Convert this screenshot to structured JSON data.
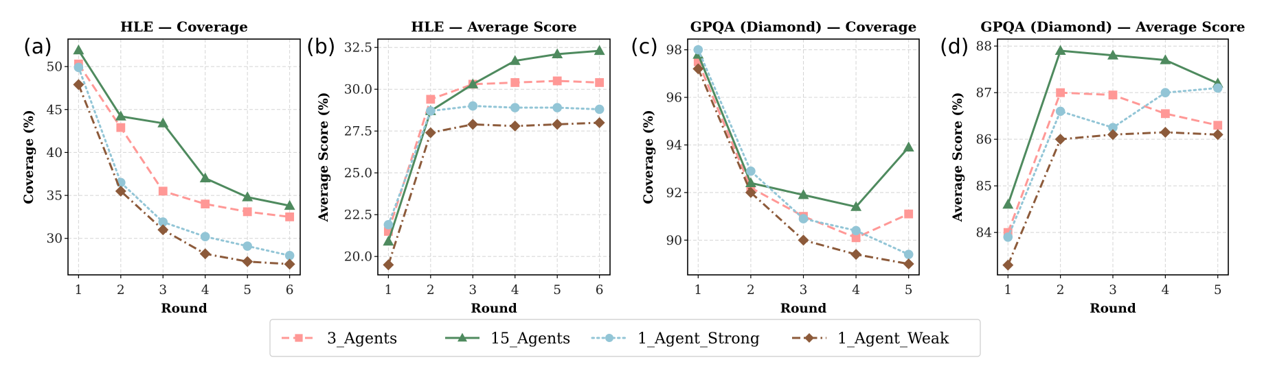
{
  "figure": {
    "legend": {
      "placement": "bottom-center",
      "entries": [
        {
          "name": "3_Agents",
          "color": "#FF9896",
          "marker": "square",
          "linestyle": "dashed"
        },
        {
          "name": "15_Agents",
          "color": "#4E8A5E",
          "marker": "triangle",
          "linestyle": "solid"
        },
        {
          "name": "1_Agent_Strong",
          "color": "#92C5D6",
          "marker": "circle",
          "linestyle": "dotted"
        },
        {
          "name": "1_Agent_Weak",
          "color": "#8C5A3A",
          "marker": "diamond",
          "linestyle": "dashdot"
        }
      ]
    }
  },
  "chart_data": [
    {
      "type": "line",
      "panel_label": "(a)",
      "title": "HLE — Coverage",
      "xlabel": "Round",
      "ylabel": "Coverage (%)",
      "x": [
        1,
        2,
        3,
        4,
        5,
        6
      ],
      "xticks": [
        "1",
        "2",
        "3",
        "4",
        "5",
        "6"
      ],
      "xlim": [
        0.75,
        6.25
      ],
      "ylim": [
        25.75,
        53.2
      ],
      "yticks": [
        30,
        35,
        40,
        45,
        50
      ],
      "ytick_labels": [
        "30",
        "35",
        "40",
        "45",
        "50"
      ],
      "grid": true,
      "series": [
        {
          "name": "3_Agents",
          "values": [
            50.3,
            42.9,
            35.5,
            34.0,
            33.1,
            32.5
          ]
        },
        {
          "name": "15_Agents",
          "values": [
            51.9,
            44.2,
            43.4,
            37.0,
            34.8,
            33.8
          ]
        },
        {
          "name": "1_Agent_Strong",
          "values": [
            49.9,
            36.5,
            31.9,
            30.2,
            29.1,
            28.0
          ]
        },
        {
          "name": "1_Agent_Weak",
          "values": [
            47.9,
            35.5,
            31.0,
            28.2,
            27.3,
            27.0
          ]
        }
      ]
    },
    {
      "type": "line",
      "panel_label": "(b)",
      "title": "HLE — Average Score",
      "xlabel": "Round",
      "ylabel": "Average Score (%)",
      "x": [
        1,
        2,
        3,
        4,
        5,
        6
      ],
      "xticks": [
        "1",
        "2",
        "3",
        "4",
        "5",
        "6"
      ],
      "xlim": [
        0.75,
        6.25
      ],
      "ylim": [
        18.9,
        33.0
      ],
      "yticks": [
        20.0,
        22.5,
        25.0,
        27.5,
        30.0,
        32.5
      ],
      "ytick_labels": [
        "20.0",
        "22.5",
        "25.0",
        "27.5",
        "30.0",
        "32.5"
      ],
      "grid": true,
      "series": [
        {
          "name": "3_Agents",
          "values": [
            21.5,
            29.4,
            30.3,
            30.4,
            30.5,
            30.4
          ]
        },
        {
          "name": "15_Agents",
          "values": [
            20.9,
            28.7,
            30.3,
            31.7,
            32.1,
            32.3
          ]
        },
        {
          "name": "1_Agent_Strong",
          "values": [
            21.9,
            28.7,
            29.0,
            28.9,
            28.9,
            28.8
          ]
        },
        {
          "name": "1_Agent_Weak",
          "values": [
            19.5,
            27.4,
            27.9,
            27.8,
            27.9,
            28.0
          ]
        }
      ]
    },
    {
      "type": "line",
      "panel_label": "(c)",
      "title": "GPQA (Diamond) — Coverage",
      "xlabel": "Round",
      "ylabel": "Coverage (%)",
      "x": [
        1,
        2,
        3,
        4,
        5
      ],
      "xticks": [
        "1",
        "2",
        "3",
        "4",
        "5"
      ],
      "xlim": [
        0.8,
        5.2
      ],
      "ylim": [
        88.54,
        98.45
      ],
      "yticks": [
        90,
        92,
        94,
        96,
        98
      ],
      "ytick_labels": [
        "90",
        "92",
        "94",
        "96",
        "98"
      ],
      "grid": true,
      "series": [
        {
          "name": "3_Agents",
          "values": [
            97.5,
            92.2,
            91.0,
            90.1,
            91.1
          ]
        },
        {
          "name": "15_Agents",
          "values": [
            97.8,
            92.4,
            91.9,
            91.4,
            93.9
          ]
        },
        {
          "name": "1_Agent_Strong",
          "values": [
            98.0,
            92.9,
            90.9,
            90.4,
            89.4
          ]
        },
        {
          "name": "1_Agent_Weak",
          "values": [
            97.2,
            92.0,
            90.0,
            89.4,
            89.0
          ]
        }
      ]
    },
    {
      "type": "line",
      "panel_label": "(d)",
      "title": "GPQA (Diamond) — Average Score",
      "xlabel": "Round",
      "ylabel": "Average Score (%)",
      "x": [
        1,
        2,
        3,
        4,
        5
      ],
      "xticks": [
        "1",
        "2",
        "3",
        "4",
        "5"
      ],
      "xlim": [
        0.8,
        5.2
      ],
      "ylim": [
        83.09,
        88.15
      ],
      "yticks": [
        84,
        85,
        86,
        87,
        88
      ],
      "ytick_labels": [
        "84",
        "85",
        "86",
        "87",
        "88"
      ],
      "grid": true,
      "series": [
        {
          "name": "3_Agents",
          "values": [
            84.0,
            87.0,
            86.95,
            86.55,
            86.3
          ]
        },
        {
          "name": "15_Agents",
          "values": [
            84.6,
            87.9,
            87.8,
            87.7,
            87.2
          ]
        },
        {
          "name": "1_Agent_Strong",
          "values": [
            83.9,
            86.6,
            86.25,
            87.0,
            87.1
          ]
        },
        {
          "name": "1_Agent_Weak",
          "values": [
            83.3,
            86.0,
            86.1,
            86.15,
            86.1
          ]
        }
      ]
    }
  ]
}
